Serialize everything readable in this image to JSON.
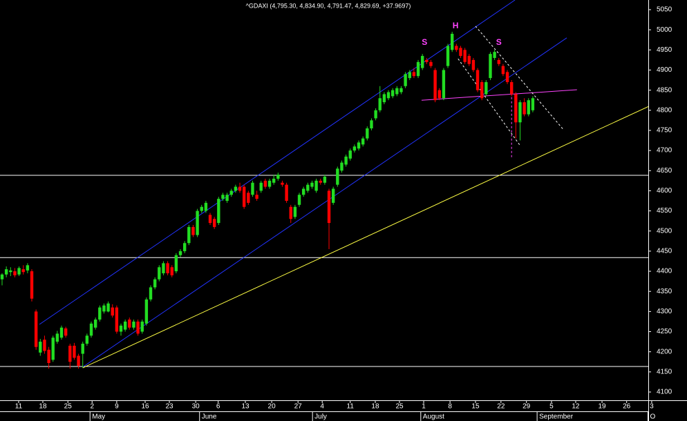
{
  "chart_data": {
    "type": "candlestick",
    "title": "^GDAXI (4,795.30, 4,834.90, 4,791.47, 4,829.69, +37.9697)",
    "up_color": "#22dd22",
    "down_color": "#ff0000",
    "ylim": [
      4079.4,
      5074
    ],
    "yticks": [
      4100,
      4150,
      4200,
      4250,
      4300,
      4350,
      4400,
      4450,
      4500,
      4550,
      4600,
      4650,
      4700,
      4750,
      4800,
      4850,
      4900,
      4950,
      5000,
      5050
    ],
    "xlim": [
      -0.49,
      152.2
    ],
    "xticks": [
      {
        "value": 3.9,
        "label": "11"
      },
      {
        "value": 9.6,
        "label": "18"
      },
      {
        "value": 15.5,
        "label": "25"
      },
      {
        "value": 21.2,
        "label": "2"
      },
      {
        "value": 27.0,
        "label": "9"
      },
      {
        "value": 33.7,
        "label": "16"
      },
      {
        "value": 39.4,
        "label": "23"
      },
      {
        "value": 45.6,
        "label": "30"
      },
      {
        "value": 50.9,
        "label": "6"
      },
      {
        "value": 57.3,
        "label": "13"
      },
      {
        "value": 63.5,
        "label": "20"
      },
      {
        "value": 69.7,
        "label": "27"
      },
      {
        "value": 75.4,
        "label": "4"
      },
      {
        "value": 82.0,
        "label": "11"
      },
      {
        "value": 87.9,
        "label": "18"
      },
      {
        "value": 93.6,
        "label": "25"
      },
      {
        "value": 99.3,
        "label": "1"
      },
      {
        "value": 105.5,
        "label": "8"
      },
      {
        "value": 111.5,
        "label": "15"
      },
      {
        "value": 117.5,
        "label": "22"
      },
      {
        "value": 123.5,
        "label": "29"
      },
      {
        "value": 129.4,
        "label": "5"
      },
      {
        "value": 135.1,
        "label": "12"
      },
      {
        "value": 141.3,
        "label": "19"
      },
      {
        "value": 147.1,
        "label": "26"
      },
      {
        "value": 153.0,
        "label": "3"
      }
    ],
    "month_ticks": [
      {
        "value": 21.2,
        "label": "May"
      },
      {
        "value": 47.0,
        "label": "June"
      },
      {
        "value": 73.6,
        "label": "July"
      },
      {
        "value": 99.1,
        "label": "August"
      },
      {
        "value": 126.5,
        "label": "September"
      },
      {
        "value": 152.6,
        "label": "O"
      }
    ],
    "candles": [
      [
        4380,
        4395,
        4365,
        4392
      ],
      [
        4392,
        4412,
        4385,
        4405
      ],
      [
        4398,
        4410,
        4388,
        4402
      ],
      [
        4400,
        4408,
        4385,
        4390
      ],
      [
        4392,
        4412,
        4388,
        4408
      ],
      [
        4405,
        4415,
        4392,
        4398
      ],
      [
        4402,
        4420,
        4395,
        4415
      ],
      [
        4400,
        4405,
        4325,
        4332
      ],
      [
        4300,
        4305,
        4205,
        4212
      ],
      [
        4198,
        4232,
        4190,
        4225
      ],
      [
        4230,
        4240,
        4195,
        4202
      ],
      [
        4205,
        4212,
        4158,
        4172
      ],
      [
        4180,
        4240,
        4175,
        4235
      ],
      [
        4225,
        4252,
        4220,
        4245
      ],
      [
        4235,
        4265,
        4230,
        4260
      ],
      [
        4258,
        4262,
        4235,
        4240
      ],
      [
        4215,
        4220,
        4158,
        4175
      ],
      [
        4215,
        4222,
        4180,
        4185
      ],
      [
        4190,
        4195,
        4158,
        4165
      ],
      [
        4195,
        4225,
        4160,
        4220
      ],
      [
        4220,
        4245,
        4215,
        4240
      ],
      [
        4240,
        4275,
        4235,
        4270
      ],
      [
        4260,
        4285,
        4255,
        4280
      ],
      [
        4280,
        4315,
        4275,
        4310
      ],
      [
        4300,
        4320,
        4295,
        4315
      ],
      [
        4300,
        4325,
        4298,
        4320
      ],
      [
        4310,
        4318,
        4285,
        4290
      ],
      [
        4310,
        4315,
        4245,
        4250
      ],
      [
        4250,
        4270,
        4240,
        4265
      ],
      [
        4255,
        4280,
        4250,
        4275
      ],
      [
        4280,
        4285,
        4255,
        4260
      ],
      [
        4260,
        4280,
        4255,
        4275
      ],
      [
        4275,
        4280,
        4240,
        4245
      ],
      [
        4250,
        4280,
        4245,
        4275
      ],
      [
        4270,
        4335,
        4265,
        4330
      ],
      [
        4330,
        4365,
        4325,
        4360
      ],
      [
        4360,
        4385,
        4355,
        4380
      ],
      [
        4380,
        4415,
        4375,
        4410
      ],
      [
        4395,
        4425,
        4390,
        4420
      ],
      [
        4420,
        4425,
        4390,
        4395
      ],
      [
        4410,
        4415,
        4385,
        4390
      ],
      [
        4400,
        4445,
        4395,
        4440
      ],
      [
        4440,
        4455,
        4435,
        4450
      ],
      [
        4450,
        4475,
        4445,
        4470
      ],
      [
        4470,
        4515,
        4465,
        4510
      ],
      [
        4510,
        4515,
        4485,
        4490
      ],
      [
        4490,
        4555,
        4485,
        4550
      ],
      [
        4550,
        4565,
        4545,
        4560
      ],
      [
        4550,
        4575,
        4545,
        4570
      ],
      [
        4540,
        4545,
        4515,
        4520
      ],
      [
        4530,
        4535,
        4505,
        4510
      ],
      [
        4520,
        4585,
        4515,
        4580
      ],
      [
        4580,
        4595,
        4575,
        4590
      ],
      [
        4575,
        4595,
        4570,
        4590
      ],
      [
        4590,
        4605,
        4585,
        4600
      ],
      [
        4600,
        4615,
        4595,
        4610
      ],
      [
        4610,
        4620,
        4595,
        4600
      ],
      [
        4610,
        4615,
        4555,
        4560
      ],
      [
        4595,
        4600,
        4565,
        4570
      ],
      [
        4590,
        4625,
        4585,
        4620
      ],
      [
        4590,
        4600,
        4575,
        4580
      ],
      [
        4600,
        4625,
        4595,
        4620
      ],
      [
        4625,
        4630,
        4605,
        4610
      ],
      [
        4610,
        4630,
        4605,
        4625
      ],
      [
        4620,
        4640,
        4615,
        4630
      ],
      [
        4630,
        4645,
        4625,
        4640
      ],
      [
        4620,
        4625,
        4610,
        4615
      ],
      [
        4615,
        4620,
        4570,
        4575
      ],
      [
        4560,
        4565,
        4520,
        4530
      ],
      [
        4535,
        4565,
        4530,
        4560
      ],
      [
        4565,
        4595,
        4560,
        4590
      ],
      [
        4590,
        4610,
        4585,
        4605
      ],
      [
        4600,
        4620,
        4595,
        4615
      ],
      [
        4610,
        4625,
        4605,
        4620
      ],
      [
        4600,
        4630,
        4595,
        4625
      ],
      [
        4625,
        4630,
        4615,
        4620
      ],
      [
        4620,
        4640,
        4615,
        4635
      ],
      [
        4600,
        4605,
        4455,
        4520
      ],
      [
        4570,
        4610,
        4565,
        4605
      ],
      [
        4615,
        4660,
        4610,
        4655
      ],
      [
        4650,
        4675,
        4645,
        4670
      ],
      [
        4665,
        4690,
        4660,
        4685
      ],
      [
        4680,
        4705,
        4675,
        4700
      ],
      [
        4700,
        4715,
        4695,
        4710
      ],
      [
        4705,
        4725,
        4700,
        4720
      ],
      [
        4715,
        4735,
        4710,
        4730
      ],
      [
        4730,
        4760,
        4725,
        4755
      ],
      [
        4755,
        4780,
        4750,
        4775
      ],
      [
        4780,
        4805,
        4775,
        4800
      ],
      [
        4800,
        4860,
        4795,
        4830
      ],
      [
        4820,
        4845,
        4815,
        4840
      ],
      [
        4830,
        4850,
        4825,
        4845
      ],
      [
        4835,
        4855,
        4830,
        4850
      ],
      [
        4840,
        4860,
        4835,
        4855
      ],
      [
        4845,
        4860,
        4840,
        4855
      ],
      [
        4860,
        4895,
        4855,
        4890
      ],
      [
        4880,
        4900,
        4875,
        4895
      ],
      [
        4895,
        4905,
        4880,
        4885
      ],
      [
        4885,
        4925,
        4880,
        4920
      ],
      [
        4905,
        4940,
        4900,
        4935
      ],
      [
        4925,
        4930,
        4915,
        4920
      ],
      [
        4920,
        4925,
        4905,
        4910
      ],
      [
        4900,
        4905,
        4820,
        4825
      ],
      [
        4850,
        4855,
        4825,
        4830
      ],
      [
        4830,
        4905,
        4825,
        4900
      ],
      [
        4910,
        4965,
        4905,
        4960
      ],
      [
        4950,
        4995,
        4945,
        4990
      ],
      [
        4960,
        4965,
        4945,
        4950
      ],
      [
        4955,
        4960,
        4930,
        4935
      ],
      [
        4950,
        4955,
        4915,
        4920
      ],
      [
        4935,
        4940,
        4910,
        4915
      ],
      [
        4925,
        4930,
        4895,
        4900
      ],
      [
        4900,
        4905,
        4845,
        4850
      ],
      [
        4870,
        4875,
        4825,
        4830
      ],
      [
        4840,
        4875,
        4835,
        4870
      ],
      [
        4880,
        4945,
        4875,
        4940
      ],
      [
        4930,
        4950,
        4925,
        4945
      ],
      [
        4925,
        4930,
        4910,
        4915
      ],
      [
        4910,
        4915,
        4885,
        4890
      ],
      [
        4895,
        4900,
        4865,
        4870
      ],
      [
        4870,
        4875,
        4835,
        4840
      ],
      [
        4840,
        4845,
        4730,
        4770
      ],
      [
        4770,
        4825,
        4725,
        4820
      ],
      [
        4820,
        4830,
        4785,
        4790
      ],
      [
        4790,
        4830,
        4785,
        4825
      ],
      [
        4800,
        4835,
        4795,
        4830
      ]
    ],
    "overlays": [
      {
        "color": "#ffffff",
        "x": [
          -0.49,
          152.2
        ],
        "y": [
          4163.5,
          4163.5
        ]
      },
      {
        "color": "#ffffff",
        "x": [
          -0.49,
          152.2
        ],
        "y": [
          4434,
          4434
        ]
      },
      {
        "color": "#ffffff",
        "x": [
          -0.49,
          152.2
        ],
        "y": [
          4638.5,
          4638.5
        ]
      },
      {
        "color": "#2233ff",
        "x": [
          8.8,
          120.8
        ],
        "y": [
          4268,
          5074
        ]
      },
      {
        "color": "#2233ff",
        "x": [
          19.0,
          133.0
        ],
        "y": [
          4162,
          4980
        ]
      },
      {
        "color": "#ffff44",
        "x": [
          19.0,
          153.8
        ],
        "y": [
          4160,
          4817
        ]
      },
      {
        "color": "#ff44ff",
        "x": [
          98.8,
          135.4
        ],
        "y": [
          4825,
          4851
        ]
      },
      {
        "color": "#ffffff",
        "dashed": true,
        "x": [
          111.5,
          132.2
        ],
        "y": [
          5009,
          4752
        ]
      },
      {
        "color": "#ffffff",
        "dashed": true,
        "x": [
          107.4,
          121.9
        ],
        "y": [
          4928,
          4714
        ]
      },
      {
        "color": "#ff44ff",
        "dashed": true,
        "x": [
          120,
          120
        ],
        "y": [
          4843,
          4680
        ]
      }
    ],
    "annotations": [
      {
        "text": "S",
        "x": 99.5,
        "y": 4968,
        "color": "#ff44ff"
      },
      {
        "text": "H",
        "x": 106.8,
        "y": 5009,
        "color": "#ff44ff"
      },
      {
        "text": "S",
        "x": 117,
        "y": 4968,
        "color": "#ff44ff"
      }
    ]
  }
}
